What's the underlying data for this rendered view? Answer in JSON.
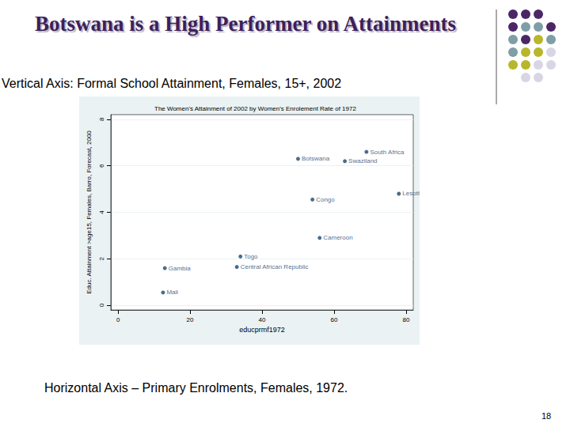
{
  "slide": {
    "title": "Botswana is a High Performer on Attainments",
    "vertical_caption": "Vertical Axis: Formal School Attainment, Females, 15+, 2002",
    "horizontal_caption": "Horizontal Axis – Primary Enrolments, Females, 1972.",
    "page_number": "18"
  },
  "chart_data": {
    "type": "scatter",
    "title": "The Women's Attainment of 2002 by Women's Enrolement Rate of 1972",
    "x_label": "educprmf1972",
    "y_label": "Educ. Attainment >age15, Females, Barro, Forecast, 2000",
    "points": [
      {
        "label": "Botswana",
        "x": 50,
        "y": 6.3
      },
      {
        "label": "South Africa",
        "x": 69,
        "y": 6.6
      },
      {
        "label": "Swaziland",
        "x": 63,
        "y": 6.2
      },
      {
        "label": "Lesotho",
        "x": 78,
        "y": 4.8
      },
      {
        "label": "Congo",
        "x": 54,
        "y": 4.55
      },
      {
        "label": "Cameroon",
        "x": 56,
        "y": 2.9
      },
      {
        "label": "Togo",
        "x": 34,
        "y": 2.1
      },
      {
        "label": "Central African Republic",
        "x": 33,
        "y": 1.65
      },
      {
        "label": "Gambia",
        "x": 13,
        "y": 1.6
      },
      {
        "label": "Mali",
        "x": 12.5,
        "y": 0.55
      }
    ],
    "color": "#1a476f",
    "marker": "circle",
    "xlim": [
      -2,
      82
    ],
    "xticks": [
      0,
      20,
      40,
      60,
      80
    ],
    "ylim": [
      -0.2,
      8.2
    ],
    "yticks": [
      0,
      2,
      4,
      6,
      8
    ],
    "grid": true
  }
}
